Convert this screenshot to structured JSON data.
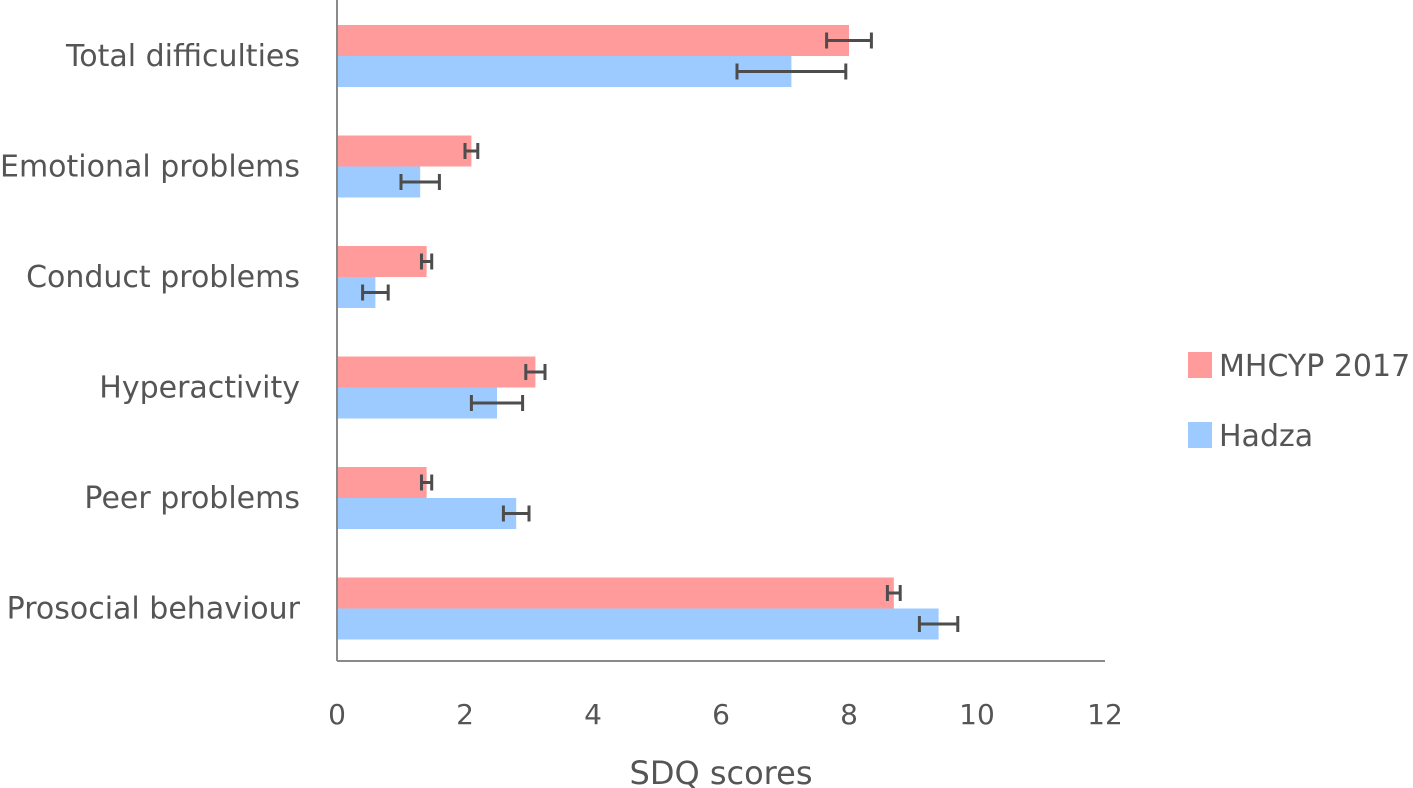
{
  "chart_data": {
    "type": "bar",
    "orientation": "horizontal",
    "categories": [
      "Total difficulties",
      "Emotional problems",
      "Conduct problems",
      "Hyperactivity",
      "Peer problems",
      "Prosocial behaviour"
    ],
    "series": [
      {
        "name": "MHCYP 2017",
        "color": "#ff9b9b",
        "values": [
          8.0,
          2.1,
          1.4,
          3.1,
          1.4,
          8.7
        ],
        "error": [
          0.35,
          0.1,
          0.08,
          0.15,
          0.08,
          0.1
        ]
      },
      {
        "name": "Hadza",
        "color": "#9ecbff",
        "values": [
          7.1,
          1.3,
          0.6,
          2.5,
          2.8,
          9.4
        ],
        "error": [
          0.85,
          0.3,
          0.2,
          0.4,
          0.2,
          0.3
        ]
      }
    ],
    "xlim": [
      0,
      12
    ],
    "xticks": [
      "0",
      "2",
      "4",
      "6",
      "8",
      "10",
      "12"
    ],
    "xlabel": "SDQ scores",
    "ylabel": "",
    "title": "",
    "legend_position": "right",
    "grid": false
  }
}
